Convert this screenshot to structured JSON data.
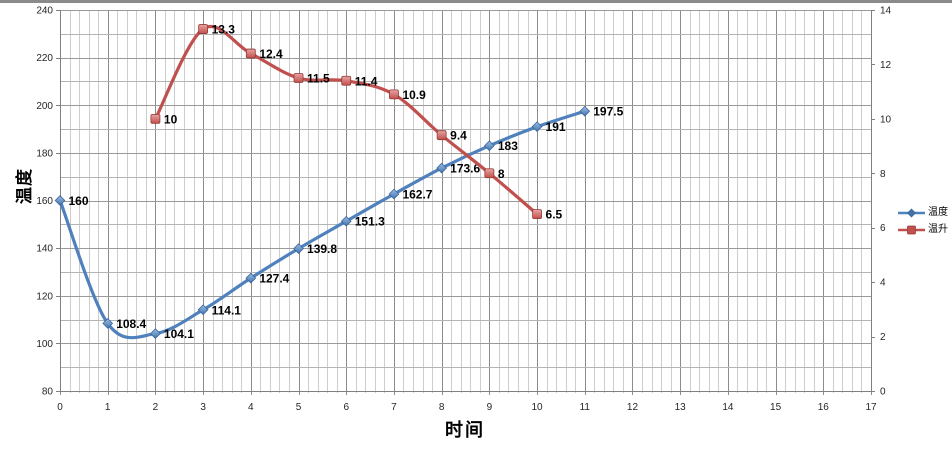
{
  "window": {
    "top_strip_color": "#8a8a8a",
    "background_color": "#ffffff"
  },
  "chart_data": {
    "type": "line",
    "smooth": true,
    "grid": {
      "minor_vertical_color": "#cdcdcd",
      "major_vertical_color": "#8c8c8c",
      "minor_horizontal_color": "#b4b4b4",
      "major_horizontal_color": "#9a9a9a",
      "axis_line_color": "#808080"
    },
    "tick_label_color": "#262626",
    "data_label_color": "#000000",
    "x_axis": {
      "title": "时间",
      "min": 0,
      "max": 17,
      "major_step": 1,
      "minor_step": 0.2,
      "tick_labels": [
        "0",
        "1",
        "2",
        "3",
        "4",
        "5",
        "6",
        "7",
        "8",
        "9",
        "10",
        "11",
        "12",
        "13",
        "14",
        "15",
        "16",
        "17"
      ]
    },
    "y_axis_left": {
      "title": "温度",
      "min": 80,
      "max": 240,
      "major_step": 20,
      "minor_step": 10,
      "tick_labels": [
        "240",
        "220",
        "200",
        "180",
        "160",
        "140",
        "120",
        "100",
        "80"
      ]
    },
    "y_axis_right": {
      "min": 0,
      "max": 14,
      "major_step": 2,
      "tick_labels": [
        "14",
        "12",
        "10",
        "8",
        "6",
        "4",
        "2",
        "0"
      ]
    },
    "series": [
      {
        "name": "温度",
        "axis": "left",
        "line_color": "#4f81bd",
        "marker": "diamond",
        "marker_fill_light": "#9dc0e8",
        "marker_fill_dark": "#4472a8",
        "marker_stroke": "#38659b",
        "x": [
          0,
          1,
          2,
          3,
          4,
          5,
          6,
          7,
          8,
          9,
          10,
          11
        ],
        "y": [
          160,
          108.4,
          104.1,
          114.1,
          127.4,
          139.8,
          151.3,
          162.7,
          173.6,
          183,
          191,
          197.5
        ],
        "labels": [
          "160",
          "108.4",
          "104.1",
          "114.1",
          "127.4",
          "139.8",
          "151.3",
          "162.7",
          "173.6",
          "183",
          "191",
          "197.5"
        ]
      },
      {
        "name": "温升",
        "axis": "right",
        "line_color": "#c0504d",
        "marker": "square",
        "marker_fill_light": "#e8a5a3",
        "marker_fill_dark": "#c0504d",
        "marker_stroke": "#953735",
        "x": [
          2,
          3,
          4,
          5,
          6,
          7,
          8,
          9,
          10
        ],
        "y": [
          10,
          13.3,
          12.4,
          11.5,
          11.4,
          10.9,
          9.4,
          8,
          6.5
        ],
        "labels": [
          "10",
          "13.3",
          "12.4",
          "11.5",
          "11.4",
          "10.9",
          "9.4",
          "8",
          "6.5"
        ]
      }
    ],
    "legend": {
      "position": "right",
      "items": [
        {
          "label": "温度"
        },
        {
          "label": "温升"
        }
      ]
    }
  }
}
